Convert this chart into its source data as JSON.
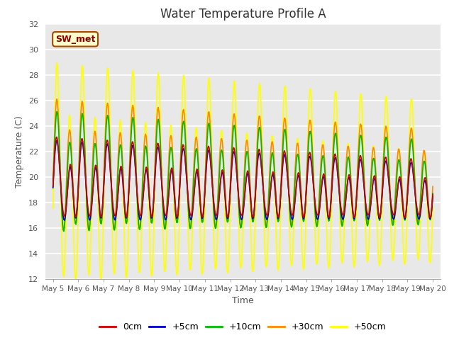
{
  "title": "Water Temperature Profile A",
  "xlabel": "Time",
  "ylabel": "Temperature (C)",
  "ylim": [
    12,
    32
  ],
  "x_tick_labels": [
    "May 5",
    "May 6",
    "May 7",
    "May 8",
    "May 9",
    "May 10",
    "May 11",
    "May 12",
    "May 13",
    "May 14",
    "May 15",
    "May 16",
    "May 17",
    "May 18",
    "May 19",
    "May 20"
  ],
  "x_tick_positions": [
    0,
    1,
    2,
    3,
    4,
    5,
    6,
    7,
    8,
    9,
    10,
    11,
    12,
    13,
    14,
    15
  ],
  "yticks": [
    12,
    14,
    16,
    18,
    20,
    22,
    24,
    26,
    28,
    30,
    32
  ],
  "colors": {
    "0cm": "#cc0000",
    "+5cm": "#0000cc",
    "+10cm": "#00bb00",
    "+30cm": "#ff8800",
    "+50cm": "#ffff00"
  },
  "annotation_text": "SW_met",
  "annotation_color": "#880000",
  "annotation_bg": "#ffffcc",
  "annotation_border": "#aa4400",
  "background_color": "#e8e8e8",
  "line_width": 1.2
}
